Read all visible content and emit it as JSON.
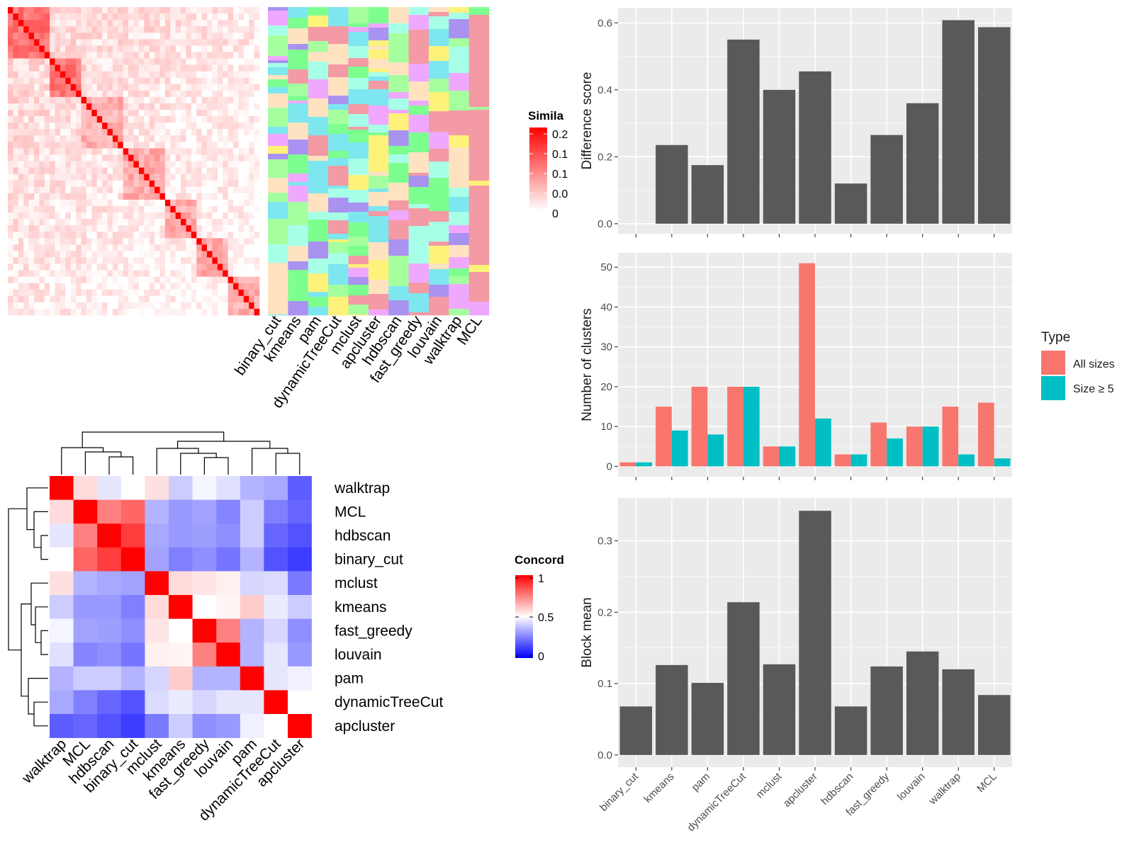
{
  "chart_data": [
    {
      "id": "similarity-heatmap",
      "type": "heatmap",
      "legend_title": "Simila",
      "legend_ticks": [
        "0.2",
        "0.1",
        "0.1",
        "0.0",
        "0"
      ],
      "cluster_columns": [
        "binary_cut",
        "kmeans",
        "pam",
        "dynamicTreeCut",
        "mclust",
        "apcluster",
        "hdbscan",
        "fast_greedy",
        "louvain",
        "walktrap",
        "MCL"
      ],
      "colors": {
        "high": "#ff0000",
        "low": "#ffffff"
      }
    },
    {
      "id": "concordance-heatmap",
      "type": "heatmap",
      "legend_title": "Concord",
      "legend_ticks": [
        "1",
        "0.5",
        "0"
      ],
      "rows": [
        "walktrap",
        "MCL",
        "hdbscan",
        "binary_cut",
        "mclust",
        "kmeans",
        "fast_greedy",
        "louvain",
        "pam",
        "dynamicTreeCut",
        "apcluster"
      ],
      "columns": [
        "walktrap",
        "MCL",
        "hdbscan",
        "binary_cut",
        "mclust",
        "kmeans",
        "fast_greedy",
        "louvain",
        "pam",
        "dynamicTreeCut",
        "apcluster"
      ],
      "values": [
        [
          1.0,
          0.57,
          0.45,
          0.5,
          0.56,
          0.4,
          0.48,
          0.44,
          0.35,
          0.33,
          0.18
        ],
        [
          0.57,
          1.0,
          0.75,
          0.8,
          0.35,
          0.3,
          0.32,
          0.26,
          0.4,
          0.25,
          0.2
        ],
        [
          0.45,
          0.75,
          1.0,
          0.88,
          0.33,
          0.3,
          0.31,
          0.28,
          0.4,
          0.2,
          0.16
        ],
        [
          0.5,
          0.8,
          0.88,
          1.0,
          0.32,
          0.25,
          0.28,
          0.23,
          0.35,
          0.16,
          0.12
        ],
        [
          0.56,
          0.35,
          0.33,
          0.32,
          1.0,
          0.57,
          0.55,
          0.53,
          0.42,
          0.43,
          0.24
        ],
        [
          0.4,
          0.3,
          0.3,
          0.25,
          0.57,
          1.0,
          0.5,
          0.52,
          0.6,
          0.46,
          0.4
        ],
        [
          0.48,
          0.32,
          0.31,
          0.28,
          0.55,
          0.5,
          1.0,
          0.75,
          0.35,
          0.42,
          0.28
        ],
        [
          0.44,
          0.26,
          0.28,
          0.23,
          0.53,
          0.52,
          0.75,
          1.0,
          0.35,
          0.45,
          0.3
        ],
        [
          0.35,
          0.4,
          0.4,
          0.35,
          0.42,
          0.6,
          0.35,
          0.35,
          1.0,
          0.45,
          0.47
        ],
        [
          0.33,
          0.25,
          0.2,
          0.16,
          0.43,
          0.46,
          0.42,
          0.45,
          0.45,
          1.0,
          0.5
        ],
        [
          0.18,
          0.2,
          0.16,
          0.12,
          0.24,
          0.4,
          0.28,
          0.3,
          0.47,
          0.5,
          1.0
        ]
      ],
      "colors": {
        "low": "#0000ff",
        "mid": "#ffffff",
        "high": "#ff0000"
      }
    },
    {
      "id": "difference-score",
      "type": "bar",
      "categories": [
        "binary_cut",
        "kmeans",
        "pam",
        "dynamicTreeCut",
        "mclust",
        "apcluster",
        "hdbscan",
        "fast_greedy",
        "louvain",
        "walktrap",
        "MCL"
      ],
      "values": [
        0.0,
        0.235,
        0.175,
        0.55,
        0.4,
        0.455,
        0.12,
        0.265,
        0.36,
        0.608,
        0.587
      ],
      "ylabel": "Difference score",
      "yticks": [
        "0.0",
        "0.2",
        "0.4",
        "0.6"
      ],
      "ylim": [
        -0.03,
        0.645
      ],
      "bar_color": "#595959"
    },
    {
      "id": "number-of-clusters",
      "type": "bar",
      "categories": [
        "binary_cut",
        "kmeans",
        "pam",
        "dynamicTreeCut",
        "mclust",
        "apcluster",
        "hdbscan",
        "fast_greedy",
        "louvain",
        "walktrap",
        "MCL"
      ],
      "series": [
        {
          "name": "All sizes",
          "values": [
            1,
            15,
            20,
            20,
            5,
            51,
            3,
            11,
            10,
            15,
            16
          ],
          "color": "#f8766d"
        },
        {
          "name": "Size ≥ 5",
          "values": [
            1,
            9,
            8,
            20,
            5,
            12,
            3,
            7,
            10,
            3,
            2
          ],
          "color": "#00bfc4"
        }
      ],
      "ylabel": "Number of clusters",
      "yticks": [
        "0",
        "10",
        "20",
        "30",
        "40",
        "50"
      ],
      "ylim": [
        -2.6,
        53.6
      ],
      "legend_title": "Type",
      "legend_position": "right"
    },
    {
      "id": "block-mean",
      "type": "bar",
      "categories": [
        "binary_cut",
        "kmeans",
        "pam",
        "dynamicTreeCut",
        "mclust",
        "apcluster",
        "hdbscan",
        "fast_greedy",
        "louvain",
        "walktrap",
        "MCL"
      ],
      "values": [
        0.068,
        0.126,
        0.101,
        0.214,
        0.127,
        0.342,
        0.068,
        0.124,
        0.145,
        0.12,
        0.084
      ],
      "ylabel": "Block mean",
      "yticks": [
        "0.0",
        "0.1",
        "0.2",
        "0.3"
      ],
      "ylim": [
        -0.017,
        0.36
      ],
      "bar_color": "#595959"
    }
  ]
}
